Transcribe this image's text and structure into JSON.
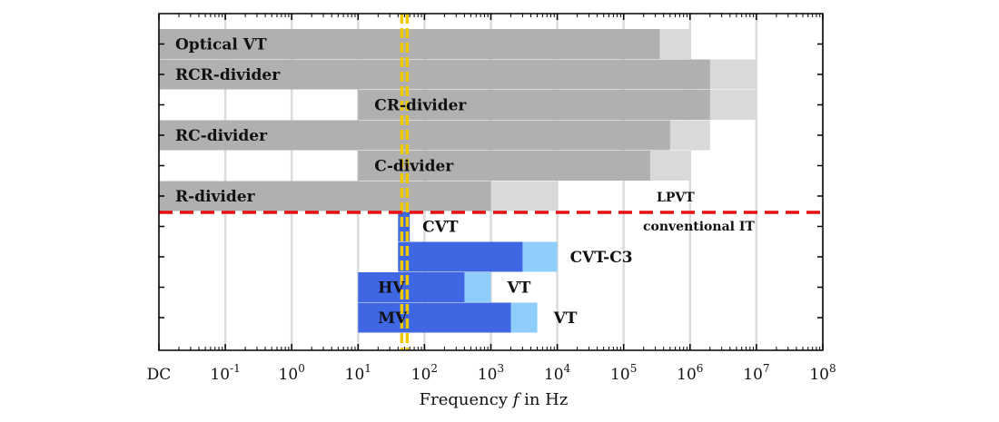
{
  "chart_data": {
    "type": "bar",
    "orientation": "horizontal",
    "xlabel": "Frequency f in Hz",
    "xlabel_prefix": "Frequency ",
    "xlabel_var": "f",
    "xlabel_suffix": " in Hz",
    "x_scale": "log",
    "xlim_exp": [
      -2,
      8
    ],
    "grid": true,
    "x_ticks": [
      {
        "label": "DC",
        "exp": null
      },
      {
        "base": "10",
        "exp": -1
      },
      {
        "base": "10",
        "exp": 0
      },
      {
        "base": "10",
        "exp": 1
      },
      {
        "base": "10",
        "exp": 2
      },
      {
        "base": "10",
        "exp": 3
      },
      {
        "base": "10",
        "exp": 4
      },
      {
        "base": "10",
        "exp": 5
      },
      {
        "base": "10",
        "exp": 6
      },
      {
        "base": "10",
        "exp": 7
      },
      {
        "base": "10",
        "exp": 8
      }
    ],
    "colors": {
      "lpvt_core": "#b0b0b0",
      "lpvt_ext": "#d9d9d9",
      "it_core": "#3f67e3",
      "it_ext": "#8fcdfa",
      "separator": "#e81010",
      "grid_freq": "#f0c800"
    },
    "grid_frequency_hz": 50,
    "separator_labels": {
      "upper": "LPVT",
      "lower": "conventional IT"
    },
    "series": [
      {
        "name": "Optical VT",
        "from": "DC",
        "core_to": 350000,
        "ext_to": 1000000,
        "group": "lpvt"
      },
      {
        "name": "RCR-divider",
        "from": "DC",
        "core_to": 2000000,
        "ext_to": 10000000,
        "group": "lpvt"
      },
      {
        "name": "CR-divider",
        "from": 10,
        "core_to": 2000000,
        "ext_to": 10000000,
        "group": "lpvt"
      },
      {
        "name": "RC-divider",
        "from": "DC",
        "core_to": 500000,
        "ext_to": 2000000,
        "group": "lpvt"
      },
      {
        "name": "C-divider",
        "from": 10,
        "core_to": 250000,
        "ext_to": 1000000,
        "group": "lpvt"
      },
      {
        "name": "R-divider",
        "from": "DC",
        "core_to": 1000,
        "ext_to": 10000,
        "group": "lpvt"
      },
      {
        "name": "CVT",
        "from": 40,
        "core_to": 60,
        "ext_to": null,
        "group": "it",
        "label_position": "outside"
      },
      {
        "name": "CVT-C3",
        "from": 40,
        "core_to": 3000,
        "ext_to": 10000,
        "group": "it",
        "label_position": "outside"
      },
      {
        "name_inside": "HV",
        "name_outside": "VT",
        "from": 10,
        "core_to": 400,
        "ext_to": 1000,
        "group": "it"
      },
      {
        "name_inside": "MV",
        "name_outside": "VT",
        "from": 10,
        "core_to": 2000,
        "ext_to": 5000,
        "group": "it"
      }
    ]
  }
}
